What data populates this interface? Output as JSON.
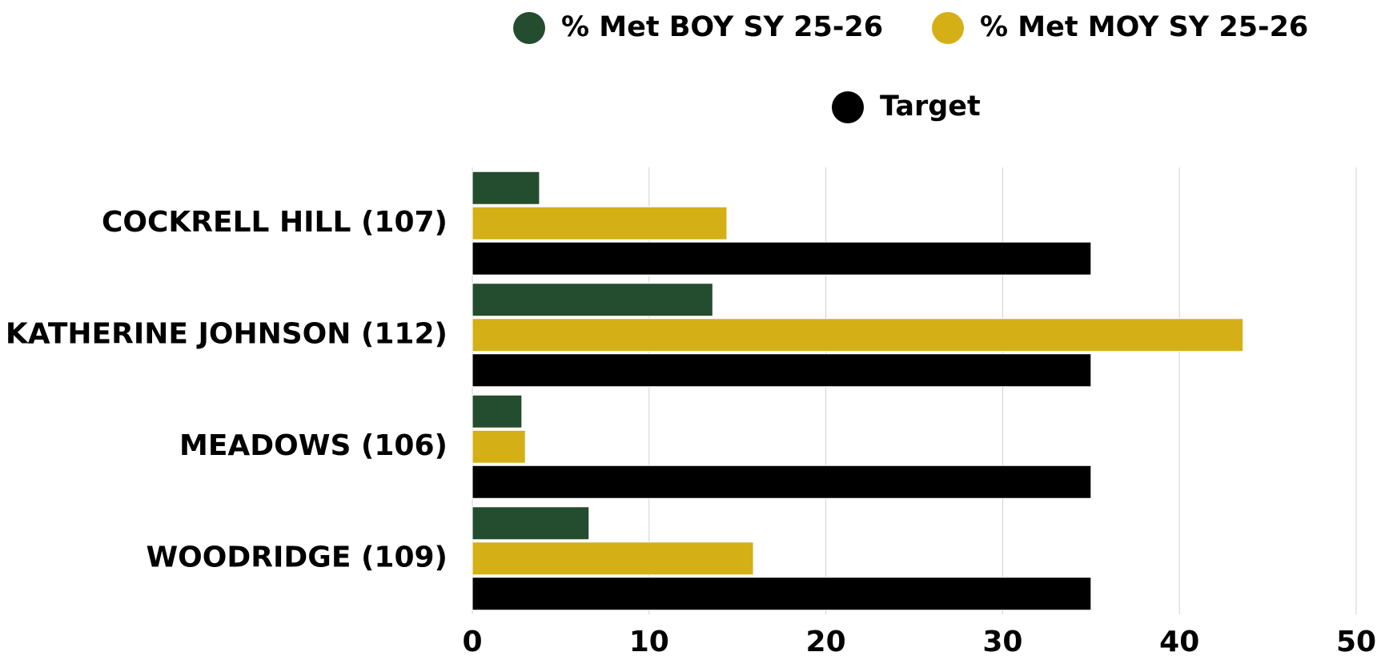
{
  "chart_data": {
    "type": "hbar",
    "categories": [
      "COCKRELL HILL (107)",
      "KATHERINE JOHNSON (112)",
      "MEADOWS (106)",
      "WOODRIDGE (109)"
    ],
    "series": [
      {
        "name": "% Met BOY SY 25-26",
        "color": "#244c2e",
        "values": [
          3.8,
          13.6,
          2.8,
          6.6
        ]
      },
      {
        "name": "% Met MOY SY 25-26",
        "color": "#d4b016",
        "values": [
          14.4,
          43.6,
          3.0,
          15.9
        ]
      },
      {
        "name": "Target",
        "color": "#000000",
        "values": [
          35,
          35,
          35,
          35
        ]
      }
    ],
    "xlim": [
      0,
      50
    ],
    "xticks": [
      0,
      10,
      20,
      30,
      40,
      50
    ],
    "grid": true,
    "legend": "top"
  }
}
